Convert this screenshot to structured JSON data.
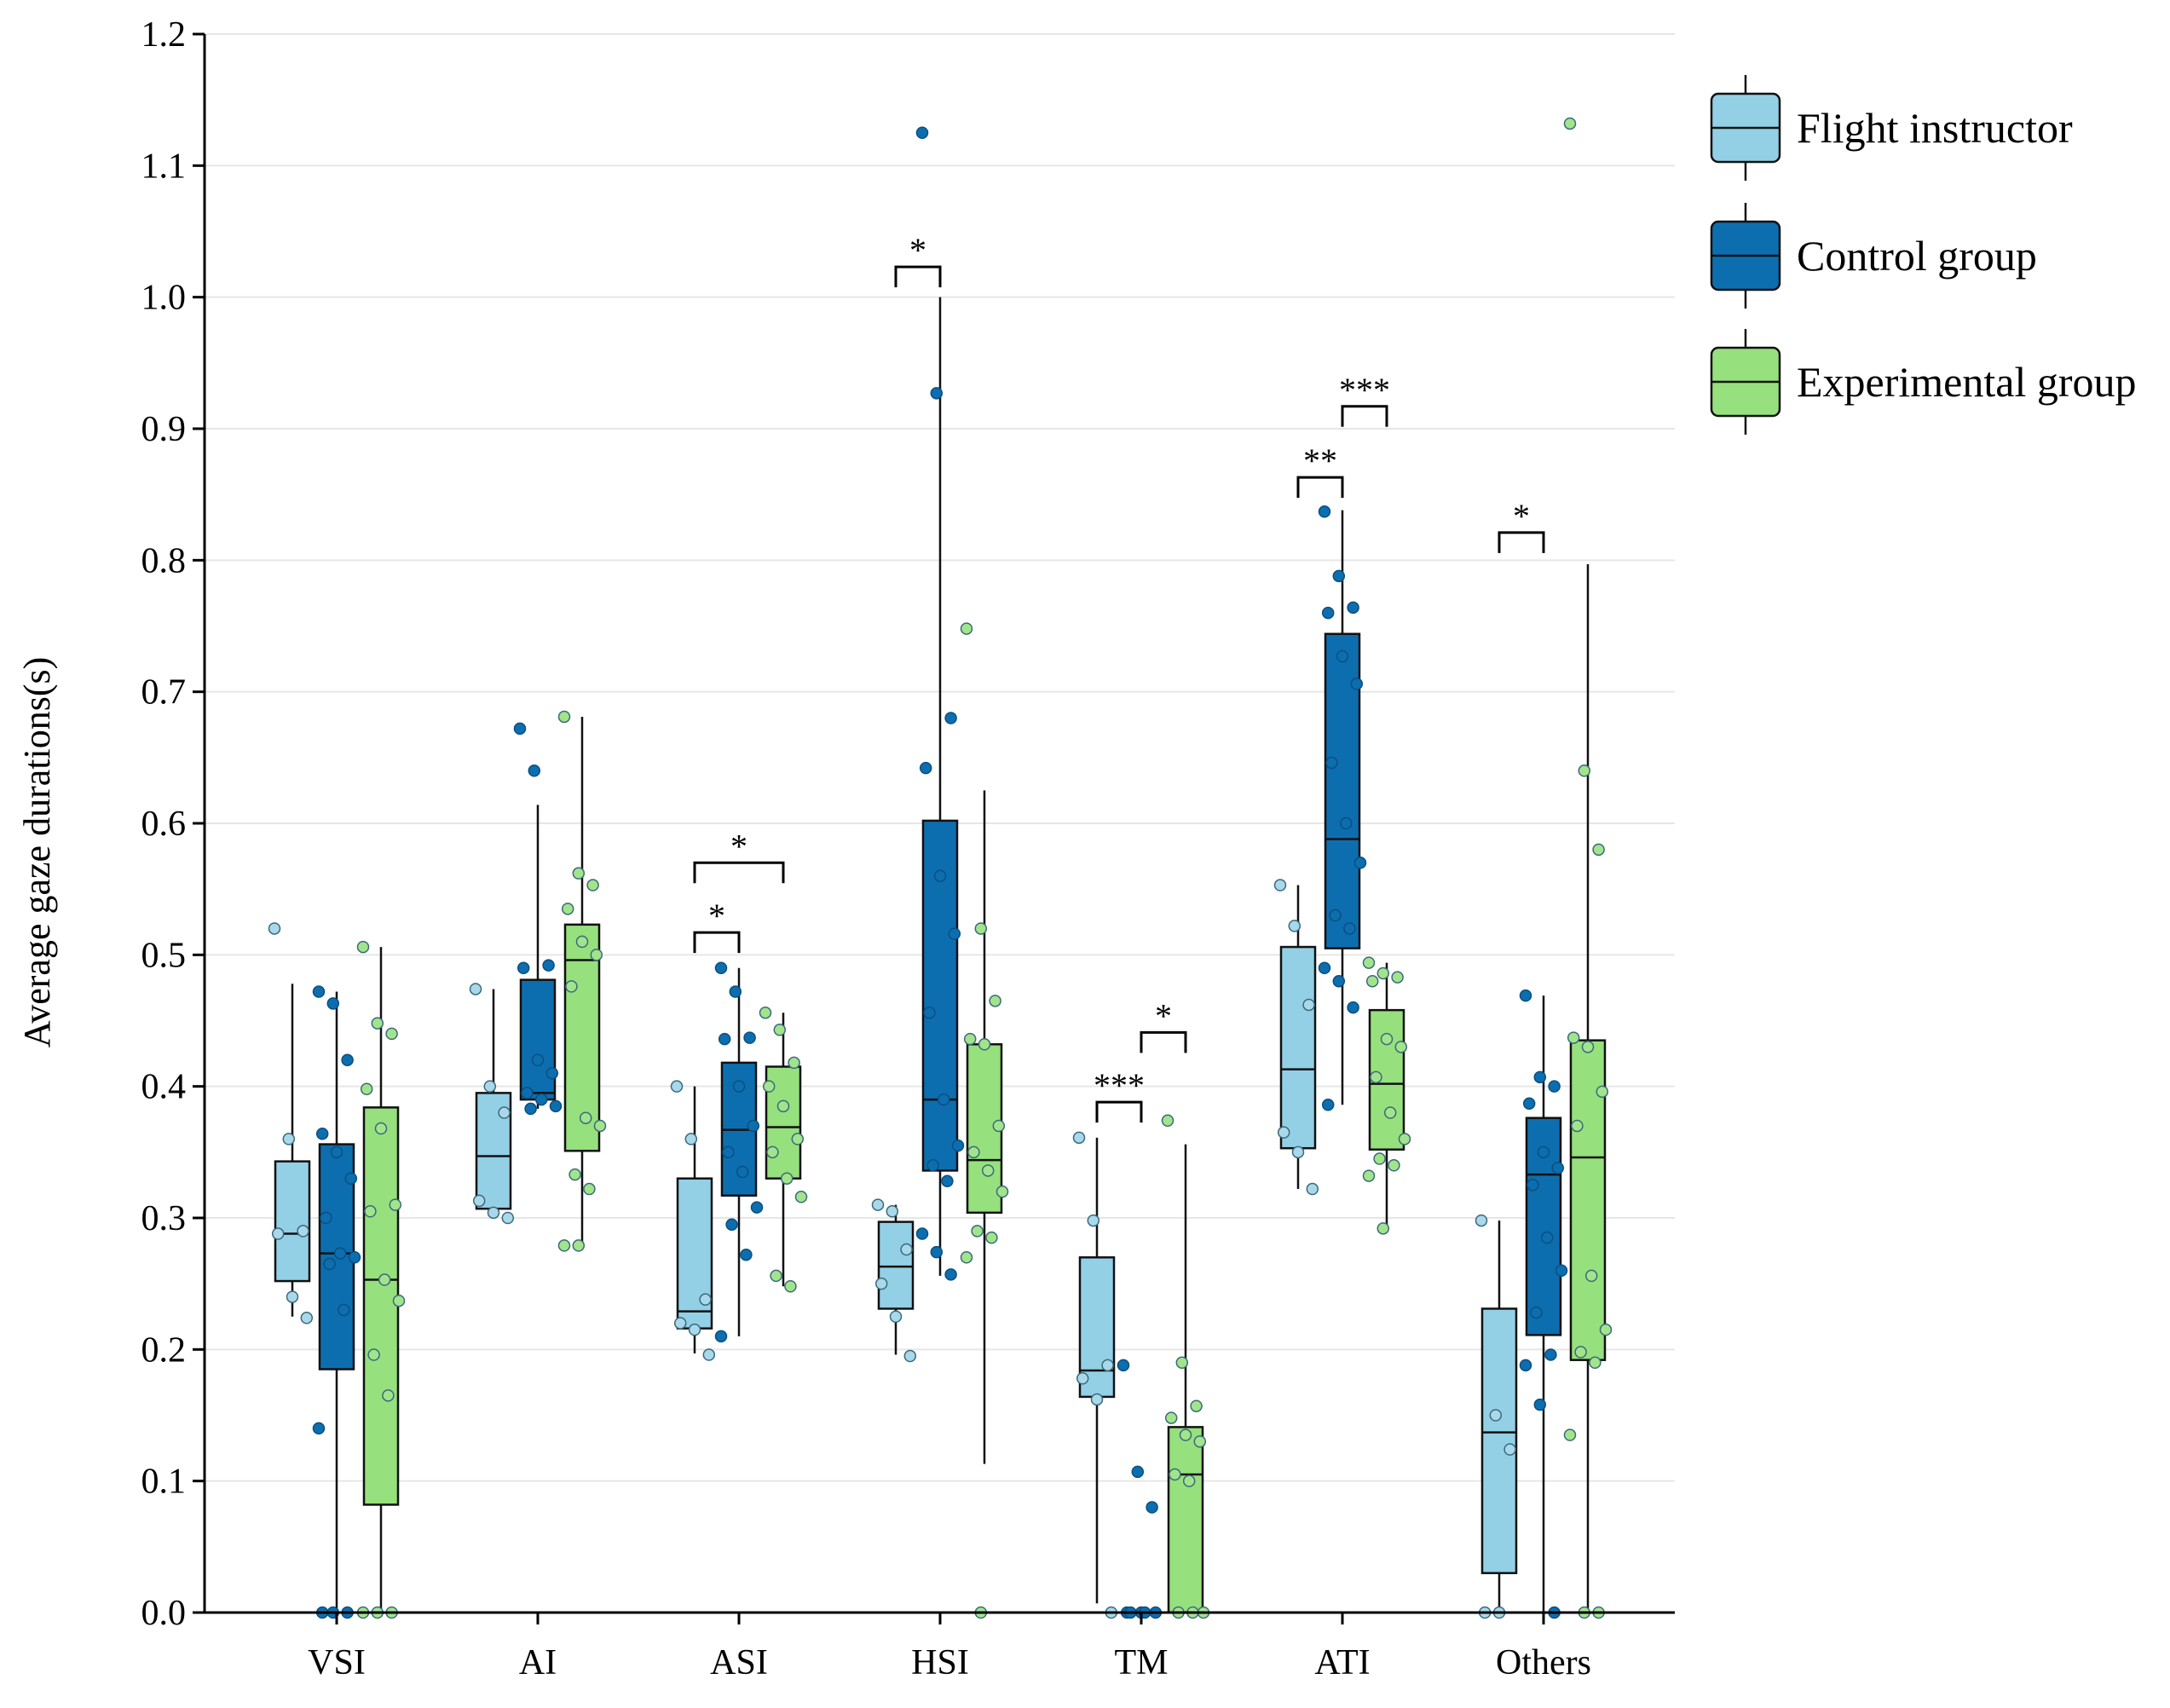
{
  "chart_data": {
    "type": "box",
    "ylabel": "Average gaze durations(s)",
    "xlabel": "",
    "ylim": [
      0,
      1.2
    ],
    "yticks": [
      "0.0",
      "0.1",
      "0.2",
      "0.3",
      "0.4",
      "0.5",
      "0.6",
      "0.7",
      "0.8",
      "0.9",
      "1.0",
      "1.1",
      "1.2"
    ],
    "grid": true,
    "legend_position": "top-right",
    "categories": [
      "VSI",
      "AI",
      "ASI",
      "HSI",
      "TM",
      "ATI",
      "Others"
    ],
    "series": [
      {
        "name": "Flight instructor",
        "color": "#93d0e6",
        "point_color": "#a8d8ea",
        "boxes": [
          {
            "whisker_low": 0.225,
            "q1": 0.252,
            "median": 0.288,
            "q3": 0.343,
            "whisker_high": 0.478
          },
          {
            "whisker_low": 0.3,
            "q1": 0.307,
            "median": 0.347,
            "q3": 0.395,
            "whisker_high": 0.474
          },
          {
            "whisker_low": 0.197,
            "q1": 0.216,
            "median": 0.229,
            "q3": 0.33,
            "whisker_high": 0.4
          },
          {
            "whisker_low": 0.196,
            "q1": 0.231,
            "median": 0.263,
            "q3": 0.297,
            "whisker_high": 0.31
          },
          {
            "whisker_low": 0.007,
            "q1": 0.164,
            "median": 0.184,
            "q3": 0.27,
            "whisker_high": 0.361
          },
          {
            "whisker_low": 0.322,
            "q1": 0.353,
            "median": 0.413,
            "q3": 0.506,
            "whisker_high": 0.553
          },
          {
            "whisker_low": 0.0,
            "q1": 0.03,
            "median": 0.137,
            "q3": 0.231,
            "whisker_high": 0.298
          }
        ],
        "points": [
          [
            0.52,
            0.36,
            0.29,
            0.288,
            0.24,
            0.224
          ],
          [
            0.474,
            0.4,
            0.38,
            0.313,
            0.304,
            0.3
          ],
          [
            0.4,
            0.36,
            0.238,
            0.22,
            0.215,
            0.196
          ],
          [
            0.31,
            0.305,
            0.276,
            0.25,
            0.225,
            0.195
          ],
          [
            0.361,
            0.298,
            0.188,
            0.178,
            0.162,
            0.0
          ],
          [
            0.553,
            0.522,
            0.462,
            0.365,
            0.35,
            0.322
          ],
          [
            0.298,
            0.15,
            0.124,
            0.0,
            0.0
          ]
        ]
      },
      {
        "name": "Control group",
        "color": "#0d6eaf",
        "point_color": "#0d6eaf",
        "boxes": [
          {
            "whisker_low": 0.0,
            "q1": 0.185,
            "median": 0.273,
            "q3": 0.356,
            "whisker_high": 0.472
          },
          {
            "whisker_low": 0.383,
            "q1": 0.39,
            "median": 0.395,
            "q3": 0.481,
            "whisker_high": 0.614
          },
          {
            "whisker_low": 0.21,
            "q1": 0.317,
            "median": 0.367,
            "q3": 0.418,
            "whisker_high": 0.49
          },
          {
            "whisker_low": 0.256,
            "q1": 0.336,
            "median": 0.39,
            "q3": 0.602,
            "whisker_high": 1.0
          },
          {
            "whisker_low": 0.0,
            "q1": 0.0,
            "median": 0.0,
            "q3": 0.0,
            "whisker_high": 0.0
          },
          {
            "whisker_low": 0.386,
            "q1": 0.505,
            "median": 0.588,
            "q3": 0.744,
            "whisker_high": 0.838
          },
          {
            "whisker_low": 0.0,
            "q1": 0.211,
            "median": 0.333,
            "q3": 0.376,
            "whisker_high": 0.469
          }
        ],
        "points": [
          [
            0.472,
            0.463,
            0.42,
            0.364,
            0.35,
            0.33,
            0.3,
            0.273,
            0.27,
            0.265,
            0.23,
            0.14,
            0.0,
            0.0,
            0.0
          ],
          [
            0.672,
            0.64,
            0.492,
            0.49,
            0.42,
            0.41,
            0.395,
            0.39,
            0.385,
            0.383
          ],
          [
            0.49,
            0.472,
            0.437,
            0.436,
            0.4,
            0.37,
            0.35,
            0.335,
            0.308,
            0.295,
            0.272,
            0.21
          ],
          [
            1.125,
            0.927,
            0.68,
            0.642,
            0.56,
            0.516,
            0.456,
            0.39,
            0.355,
            0.34,
            0.328,
            0.288,
            0.274,
            0.257
          ],
          [
            0.188,
            0.107,
            0.08,
            0.0,
            0.0,
            0.0,
            0.0,
            0.0
          ],
          [
            0.837,
            0.788,
            0.764,
            0.76,
            0.727,
            0.706,
            0.646,
            0.6,
            0.57,
            0.53,
            0.52,
            0.49,
            0.48,
            0.46,
            0.386
          ],
          [
            0.469,
            0.407,
            0.4,
            0.387,
            0.35,
            0.338,
            0.325,
            0.285,
            0.26,
            0.228,
            0.196,
            0.188,
            0.158,
            0.0
          ]
        ]
      },
      {
        "name": "Experimental group",
        "color": "#96e07e",
        "point_color": "#a2e48c",
        "boxes": [
          {
            "whisker_low": 0.0,
            "q1": 0.082,
            "median": 0.253,
            "q3": 0.384,
            "whisker_high": 0.506
          },
          {
            "whisker_low": 0.279,
            "q1": 0.351,
            "median": 0.496,
            "q3": 0.523,
            "whisker_high": 0.681
          },
          {
            "whisker_low": 0.248,
            "q1": 0.33,
            "median": 0.369,
            "q3": 0.415,
            "whisker_high": 0.456
          },
          {
            "whisker_low": 0.113,
            "q1": 0.304,
            "median": 0.344,
            "q3": 0.432,
            "whisker_high": 0.625
          },
          {
            "whisker_low": 0.0,
            "q1": 0.0,
            "median": 0.105,
            "q3": 0.141,
            "whisker_high": 0.356
          },
          {
            "whisker_low": 0.292,
            "q1": 0.352,
            "median": 0.402,
            "q3": 0.458,
            "whisker_high": 0.494
          },
          {
            "whisker_low": 0.0,
            "q1": 0.192,
            "median": 0.346,
            "q3": 0.435,
            "whisker_high": 0.797
          }
        ],
        "points": [
          [
            0.506,
            0.448,
            0.44,
            0.398,
            0.368,
            0.31,
            0.305,
            0.253,
            0.237,
            0.196,
            0.165,
            0.0,
            0.0,
            0.0
          ],
          [
            0.681,
            0.562,
            0.553,
            0.535,
            0.51,
            0.5,
            0.476,
            0.376,
            0.37,
            0.333,
            0.322,
            0.279,
            0.279
          ],
          [
            0.456,
            0.443,
            0.418,
            0.4,
            0.385,
            0.36,
            0.35,
            0.33,
            0.316,
            0.256,
            0.248
          ],
          [
            0.748,
            0.52,
            0.465,
            0.436,
            0.432,
            0.37,
            0.35,
            0.336,
            0.32,
            0.29,
            0.285,
            0.27,
            0.0
          ],
          [
            0.374,
            0.19,
            0.157,
            0.148,
            0.135,
            0.13,
            0.105,
            0.1,
            0.0,
            0.0,
            0.0
          ],
          [
            0.494,
            0.486,
            0.483,
            0.48,
            0.436,
            0.43,
            0.407,
            0.38,
            0.36,
            0.345,
            0.34,
            0.332,
            0.292
          ],
          [
            1.132,
            0.64,
            0.58,
            0.437,
            0.43,
            0.396,
            0.37,
            0.256,
            0.215,
            0.198,
            0.19,
            0.135,
            0.0,
            0.0
          ]
        ]
      }
    ],
    "annotations": [
      {
        "category": "ASI",
        "from_series": 0,
        "to_series": 1,
        "label": "*",
        "y": 0.517
      },
      {
        "category": "ASI",
        "from_series": 0,
        "to_series": 2,
        "label": "*",
        "y": 0.57
      },
      {
        "category": "HSI",
        "from_series": 0,
        "to_series": 1,
        "label": "*",
        "y": 1.023
      },
      {
        "category": "TM",
        "from_series": 0,
        "to_series": 1,
        "label": "***",
        "y": 0.388
      },
      {
        "category": "TM",
        "from_series": 1,
        "to_series": 2,
        "label": "*",
        "y": 0.441
      },
      {
        "category": "ATI",
        "from_series": 0,
        "to_series": 1,
        "label": "**",
        "y": 0.863
      },
      {
        "category": "ATI",
        "from_series": 1,
        "to_series": 2,
        "label": "***",
        "y": 0.917
      },
      {
        "category": "Others",
        "from_series": 0,
        "to_series": 1,
        "label": "*",
        "y": 0.821
      }
    ]
  }
}
